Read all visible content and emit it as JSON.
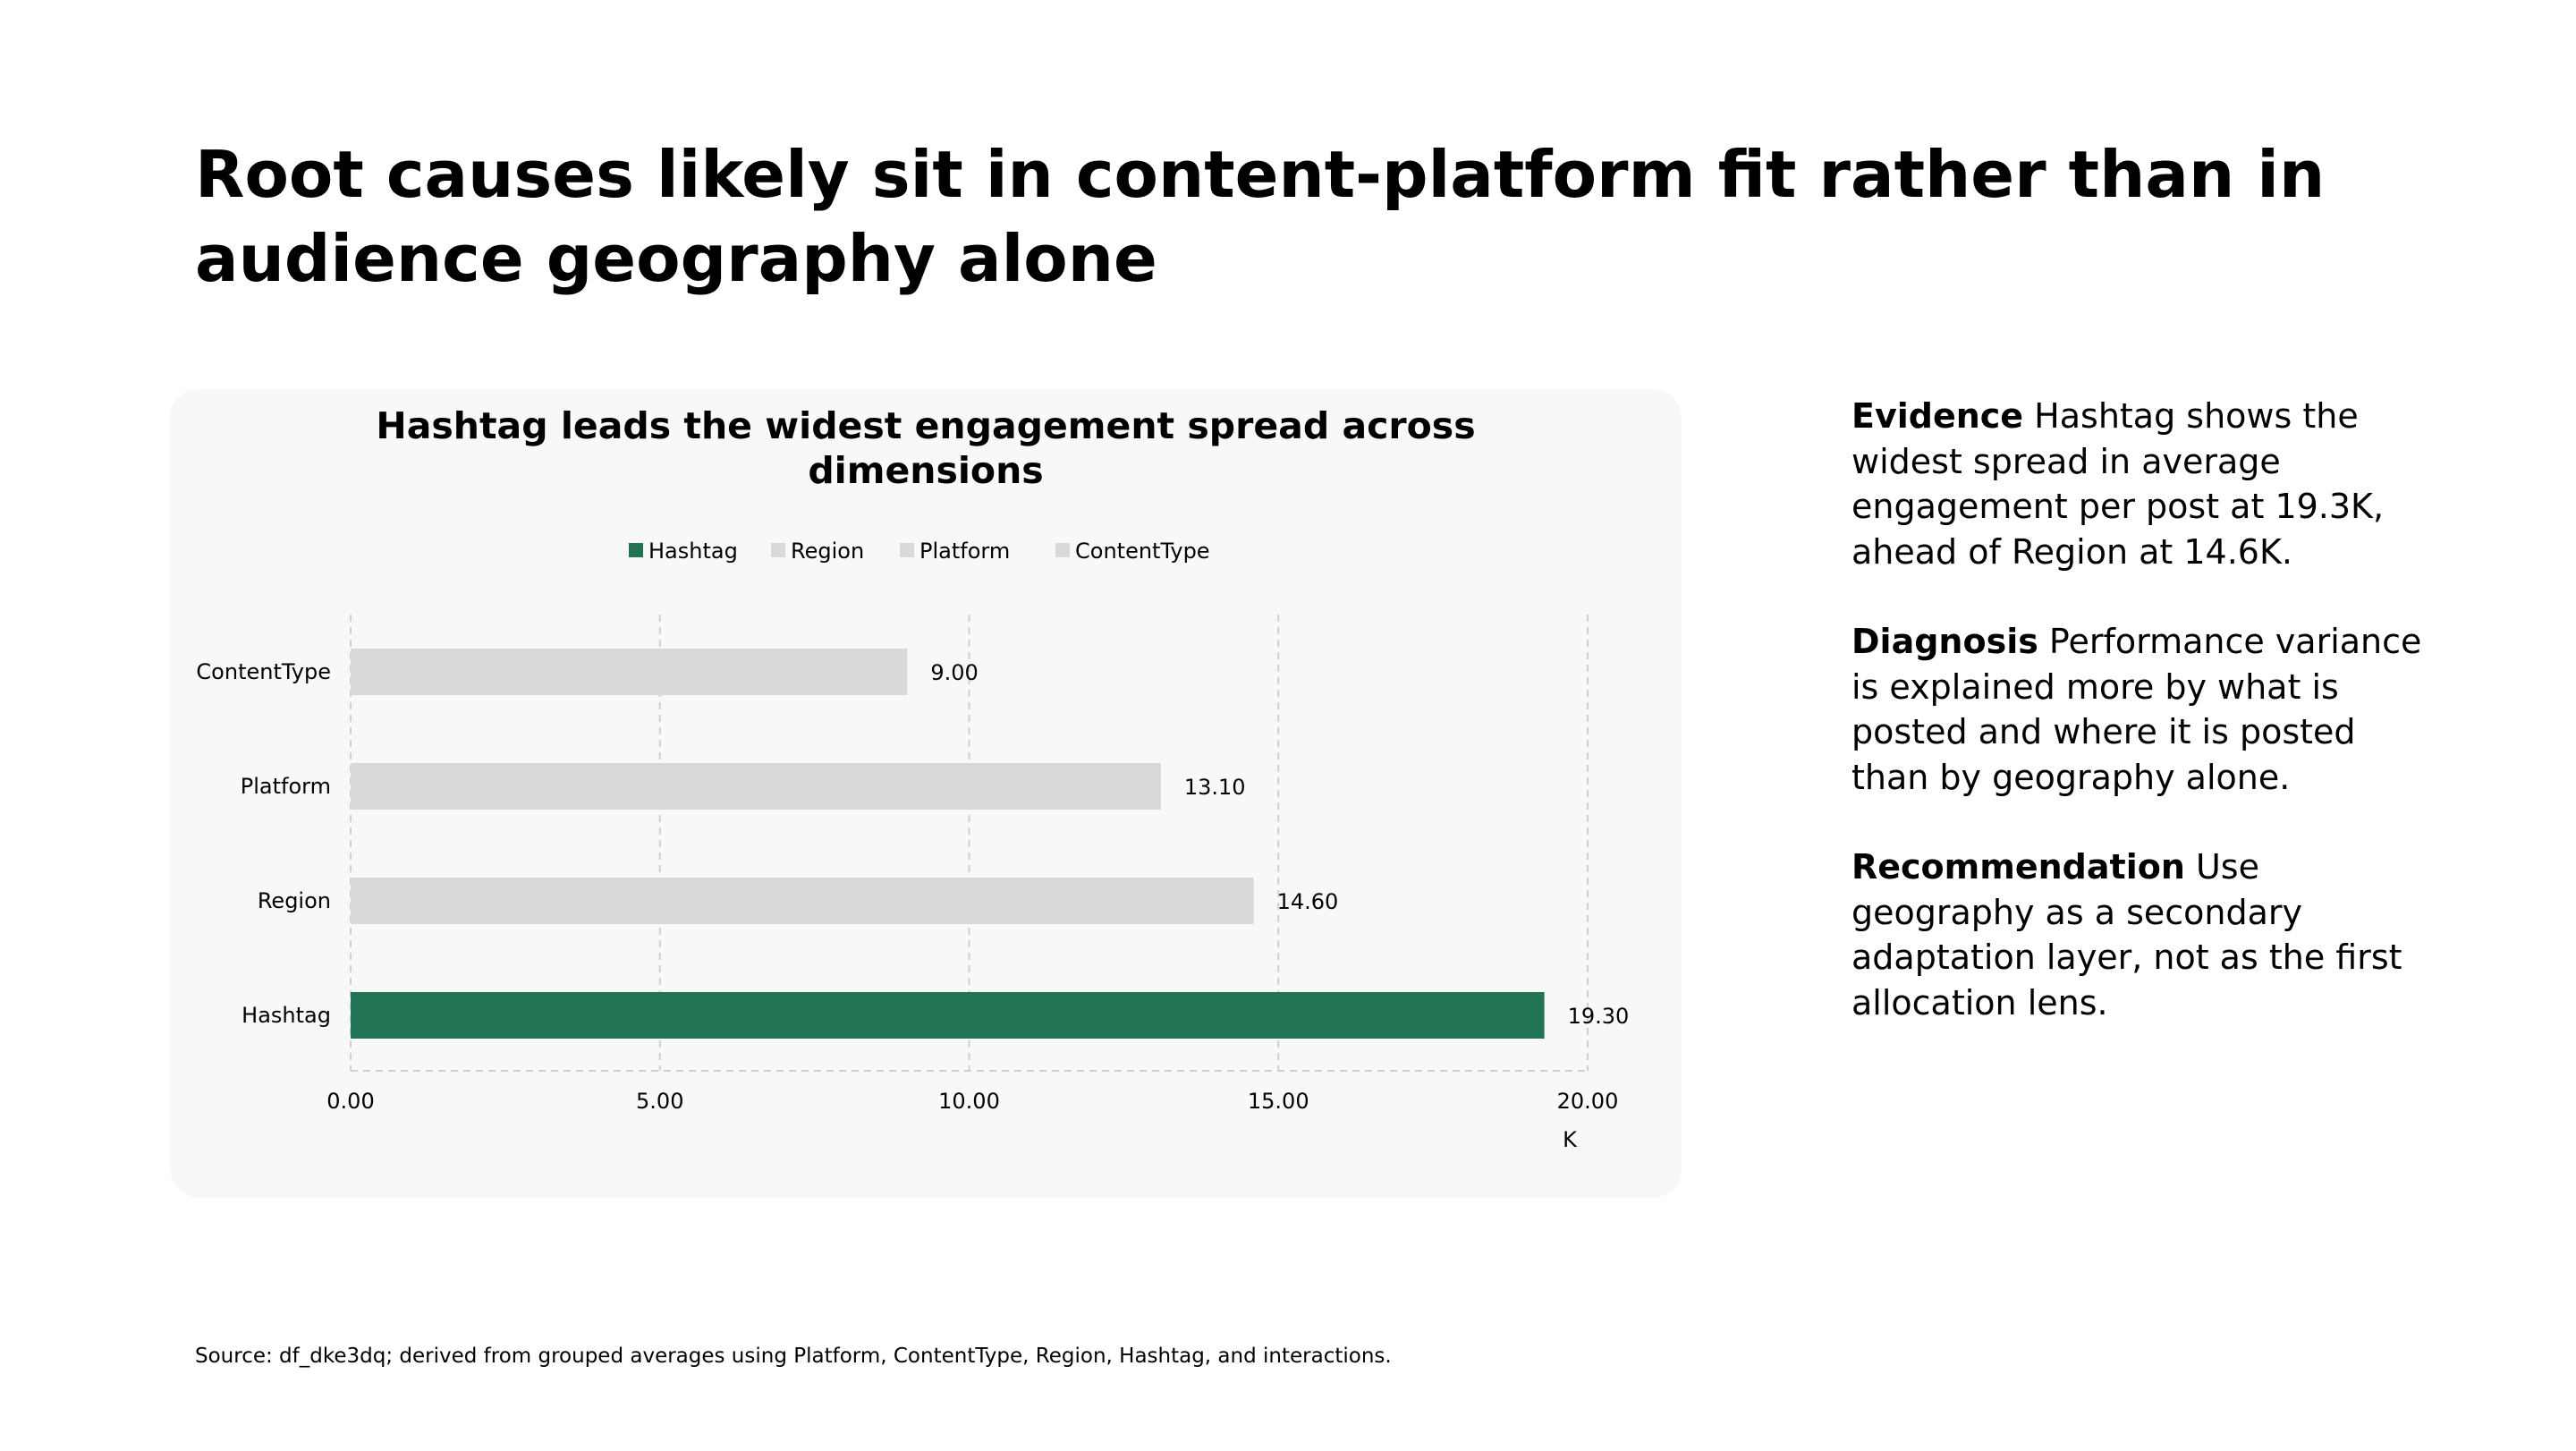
{
  "slide": {
    "title": "Root causes likely sit in content-platform fit rather than in audience geography alone"
  },
  "chart_data": {
    "type": "bar",
    "orientation": "horizontal",
    "title_lines": [
      "Hashtag leads the widest engagement spread across",
      "dimensions"
    ],
    "categories": [
      "ContentType",
      "Platform",
      "Region",
      "Hashtag"
    ],
    "values": [
      9.0,
      13.1,
      14.6,
      19.3
    ],
    "value_labels": [
      "9.00",
      "13.10",
      "14.60",
      "19.30"
    ],
    "bar_colors": [
      "#d9d9d9",
      "#d9d9d9",
      "#d9d9d9",
      "#217453"
    ],
    "legend": [
      {
        "label": "Hashtag",
        "color": "#217453"
      },
      {
        "label": "Region",
        "color": "#d9d9d9"
      },
      {
        "label": "Platform",
        "color": "#d9d9d9"
      },
      {
        "label": "ContentType",
        "color": "#d9d9d9"
      }
    ],
    "legend_position": "top",
    "x_ticks": [
      "0.00",
      "5.00",
      "10.00",
      "15.00",
      "20.00"
    ],
    "x_tick_values": [
      0,
      5,
      10,
      15,
      20
    ],
    "xlim": [
      0,
      20
    ],
    "x_unit": "K",
    "grid": true,
    "grid_style": "dashed vertical"
  },
  "panel": {
    "evidence_label": "Evidence",
    "evidence_text": " Hashtag shows the widest spread in average engagement per post at 19.3K, ahead of Region at 14.6K.",
    "diagnosis_label": "Diagnosis",
    "diagnosis_text": " Performance variance is explained more by what is posted and where it is posted than by geography alone.",
    "recommendation_label": "Recommendation",
    "recommendation_text": " Use geography as a secondary adaptation layer, not as the first allocation lens."
  },
  "source": "Source: df_dke3dq; derived from grouped averages using Platform, ContentType, Region, Hashtag, and interactions.",
  "colors": {
    "accent": "#217453",
    "muted_bar": "#d9d9d9",
    "card_bg": "#f8f8f8",
    "grid": "#d0d0d0"
  }
}
